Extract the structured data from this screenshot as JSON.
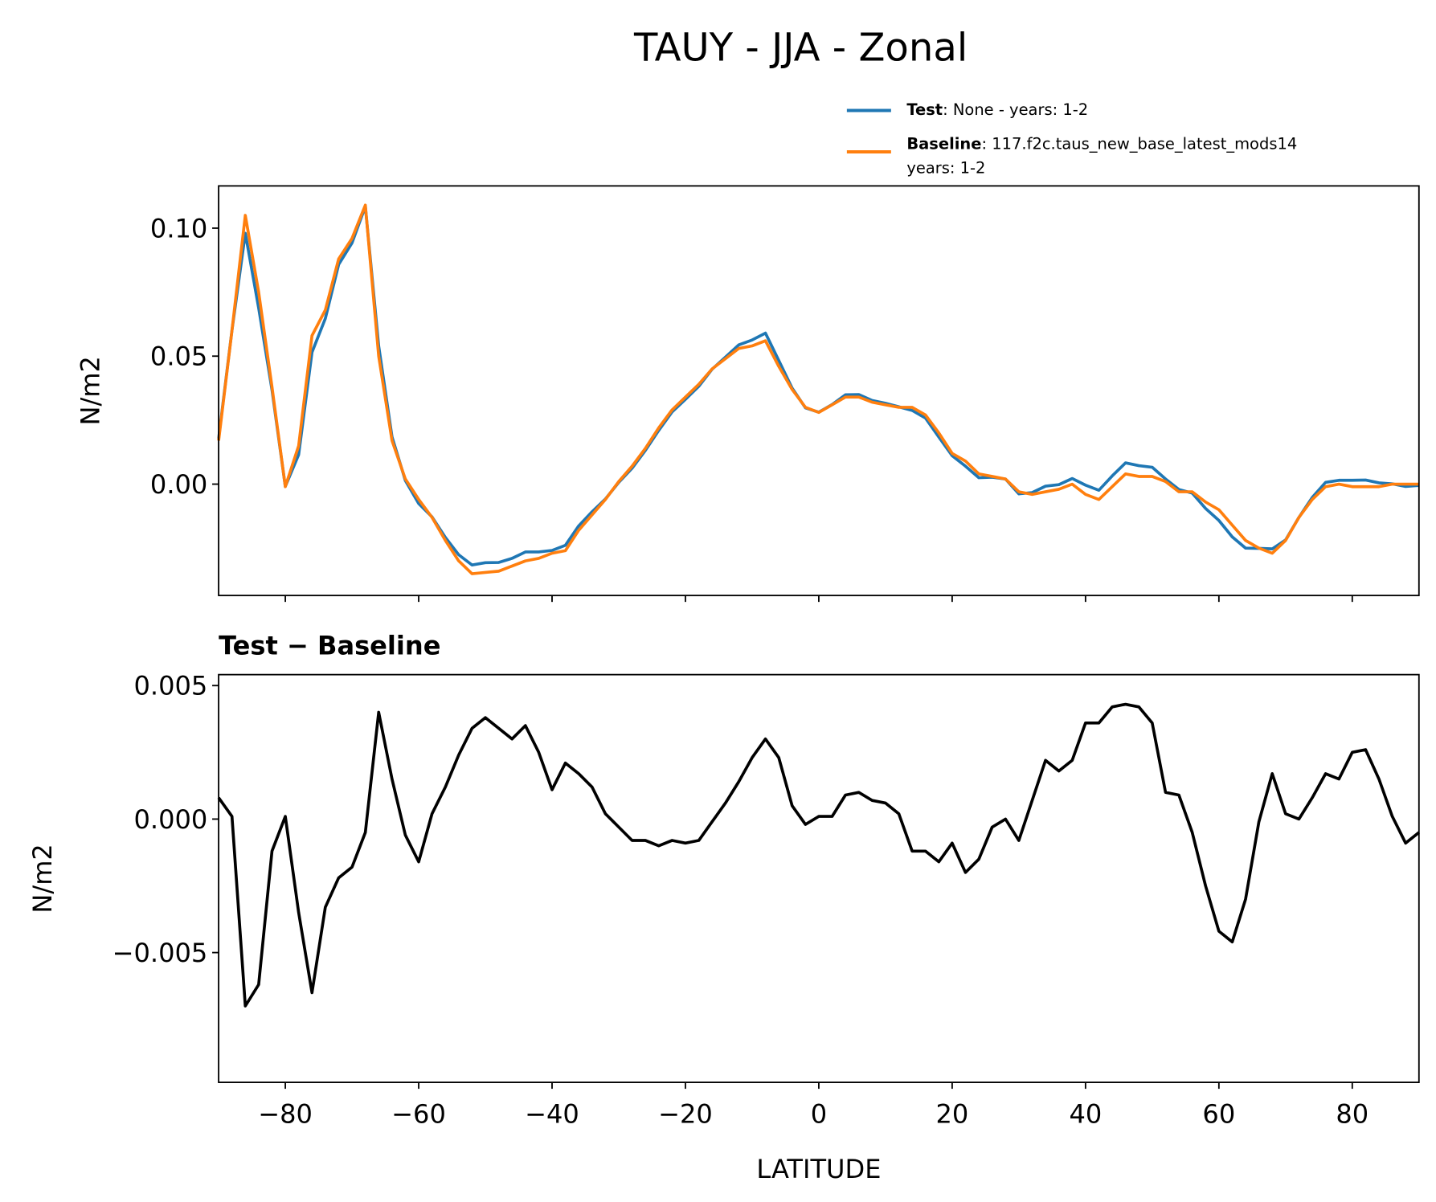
{
  "chart_data": [
    {
      "type": "line",
      "title": "TAUY - JJA - Zonal",
      "y_label": "N/m2",
      "x": [
        -90,
        -88,
        -86,
        -84,
        -82,
        -80,
        -78,
        -76,
        -74,
        -72,
        -70,
        -68,
        -66,
        -64,
        -62,
        -60,
        -58,
        -56,
        -54,
        -52,
        -50,
        -48,
        -46,
        -44,
        -42,
        -40,
        -38,
        -36,
        -34,
        -32,
        -30,
        -28,
        -26,
        -24,
        -22,
        -20,
        -18,
        -16,
        -14,
        -12,
        -10,
        -8,
        -6,
        -4,
        -2,
        0,
        2,
        4,
        6,
        8,
        10,
        12,
        14,
        16,
        18,
        20,
        22,
        24,
        26,
        28,
        30,
        32,
        34,
        36,
        38,
        40,
        42,
        44,
        46,
        48,
        50,
        52,
        54,
        56,
        58,
        60,
        62,
        64,
        66,
        68,
        70,
        72,
        74,
        76,
        78,
        80,
        82,
        84,
        86,
        88,
        90
      ],
      "series": [
        {
          "name": "Test",
          "description": [
            ": None - years: 1-2"
          ],
          "color": "#1f77b4",
          "values": [
            0.0178,
            0.0601,
            0.098,
            0.0688,
            0.0368,
            -0.0009,
            0.0115,
            0.0515,
            0.0647,
            0.0858,
            0.0942,
            0.1085,
            0.054,
            0.0185,
            0.0014,
            -0.0076,
            -0.0128,
            -0.0208,
            -0.0276,
            -0.0316,
            -0.0307,
            -0.0306,
            -0.029,
            -0.0265,
            -0.0265,
            -0.0259,
            -0.0239,
            -0.0163,
            -0.0108,
            -0.0058,
            0.0007,
            0.0062,
            0.0132,
            0.021,
            0.0282,
            0.0331,
            0.0382,
            0.0449,
            0.0496,
            0.0544,
            0.0563,
            0.059,
            0.0483,
            0.0375,
            0.0298,
            0.0281,
            0.0311,
            0.0349,
            0.035,
            0.0327,
            0.0316,
            0.0302,
            0.0288,
            0.0258,
            0.0184,
            0.0111,
            0.007,
            0.0025,
            0.0027,
            0.002,
            -0.0038,
            -0.0033,
            -0.0008,
            -0.0002,
            0.0022,
            -0.0004,
            -0.0024,
            0.0032,
            0.0083,
            0.0072,
            0.0066,
            0.002,
            -0.0021,
            -0.0035,
            -0.0095,
            -0.0142,
            -0.0206,
            -0.025,
            -0.0251,
            -0.0253,
            -0.0218,
            -0.013,
            -0.0052,
            0.0007,
            0.0015,
            0.0015,
            0.0016,
            0.0005,
            0.0001,
            -0.0009,
            -0.0005
          ]
        },
        {
          "name": "Baseline",
          "description": [
            ": 117.f2c.taus_new_base_latest_mods14",
            "years: 1-2"
          ],
          "color": "#ff7f0e",
          "values": [
            0.017,
            0.06,
            0.105,
            0.075,
            0.038,
            -0.001,
            0.015,
            0.058,
            0.068,
            0.088,
            0.096,
            0.109,
            0.05,
            0.017,
            0.002,
            -0.006,
            -0.013,
            -0.022,
            -0.03,
            -0.035,
            -0.0345,
            -0.034,
            -0.032,
            -0.03,
            -0.029,
            -0.027,
            -0.026,
            -0.018,
            -0.012,
            -0.006,
            0.001,
            0.007,
            0.014,
            0.022,
            0.029,
            0.034,
            0.039,
            0.045,
            0.049,
            0.053,
            0.054,
            0.056,
            0.046,
            0.037,
            0.03,
            0.028,
            0.031,
            0.034,
            0.034,
            0.032,
            0.031,
            0.03,
            0.03,
            0.027,
            0.02,
            0.012,
            0.009,
            0.004,
            0.003,
            0.002,
            -0.003,
            -0.004,
            -0.003,
            -0.002,
            0.0,
            -0.004,
            -0.006,
            -0.001,
            0.004,
            0.003,
            0.003,
            0.001,
            -0.003,
            -0.003,
            -0.007,
            -0.01,
            -0.016,
            -0.022,
            -0.025,
            -0.027,
            -0.022,
            -0.013,
            -0.006,
            -0.001,
            0.0,
            -0.001,
            -0.001,
            -0.001,
            0.0,
            0.0,
            0.0
          ]
        }
      ],
      "xlim": [
        -90,
        90
      ],
      "xticks": [
        -80,
        -60,
        -40,
        -20,
        0,
        20,
        40,
        60,
        80
      ],
      "ylim": [
        -0.0435,
        0.1165
      ],
      "yticks": [
        {
          "value": 0,
          "label": "0.00"
        },
        {
          "value": 0.05,
          "label": "0.05"
        },
        {
          "value": 0.1,
          "label": "0.10"
        }
      ]
    },
    {
      "type": "line",
      "title": "Test − Baseline",
      "y_label": "N/m2",
      "x_label": "LATITUDE",
      "x": [
        -90,
        -88,
        -86,
        -84,
        -82,
        -80,
        -78,
        -76,
        -74,
        -72,
        -70,
        -68,
        -66,
        -64,
        -62,
        -60,
        -58,
        -56,
        -54,
        -52,
        -50,
        -48,
        -46,
        -44,
        -42,
        -40,
        -38,
        -36,
        -34,
        -32,
        -30,
        -28,
        -26,
        -24,
        -22,
        -20,
        -18,
        -16,
        -14,
        -12,
        -10,
        -8,
        -6,
        -4,
        -2,
        0,
        2,
        4,
        6,
        8,
        10,
        12,
        14,
        16,
        18,
        20,
        22,
        24,
        26,
        28,
        30,
        32,
        34,
        36,
        38,
        40,
        42,
        44,
        46,
        48,
        50,
        52,
        54,
        56,
        58,
        60,
        62,
        64,
        66,
        68,
        70,
        72,
        74,
        76,
        78,
        80,
        82,
        84,
        86,
        88,
        90
      ],
      "series": [
        {
          "color": "#000000",
          "values": [
            0.0008,
            0.0001,
            -0.007,
            -0.0062,
            -0.0012,
            0.0001,
            -0.0035,
            -0.0065,
            -0.0033,
            -0.0022,
            -0.0018,
            -0.0005,
            0.004,
            0.0015,
            -0.0006,
            -0.0016,
            0.0002,
            0.0012,
            0.0024,
            0.0034,
            0.0038,
            0.0034,
            0.003,
            0.0035,
            0.0025,
            0.0011,
            0.0021,
            0.0017,
            0.0012,
            0.0002,
            -0.0003,
            -0.0008,
            -0.0008,
            -0.001,
            -0.0008,
            -0.0009,
            -0.0008,
            -0.0001,
            0.0006,
            0.0014,
            0.0023,
            0.003,
            0.0023,
            0.0005,
            -0.0002,
            0.0001,
            0.0001,
            0.0009,
            0.001,
            0.0007,
            0.0006,
            0.0002,
            -0.0012,
            -0.0012,
            -0.0016,
            -0.0009,
            -0.002,
            -0.0015,
            -0.0003,
            0.0,
            -0.0008,
            0.0007,
            0.0022,
            0.0018,
            0.0022,
            0.0036,
            0.0036,
            0.0042,
            0.0043,
            0.0042,
            0.0036,
            0.001,
            0.0009,
            -0.0005,
            -0.0025,
            -0.0042,
            -0.0046,
            -0.003,
            -0.0001,
            0.0017,
            0.0002,
            0.0,
            0.0008,
            0.0017,
            0.0015,
            0.0025,
            0.0026,
            0.0015,
            0.0001,
            -0.0009,
            -0.0005
          ]
        }
      ],
      "xlim": [
        -90,
        90
      ],
      "xticks": [
        {
          "value": -80,
          "label": "−80"
        },
        {
          "value": -60,
          "label": "−60"
        },
        {
          "value": -40,
          "label": "−40"
        },
        {
          "value": -20,
          "label": "−20"
        },
        0,
        20,
        40,
        60,
        80
      ],
      "ylim": [
        -0.00986,
        0.00541
      ],
      "yticks": [
        {
          "value": -0.005,
          "label": "−0.005"
        },
        {
          "value": 0,
          "label": "0.000"
        },
        {
          "value": 0.005,
          "label": "0.005"
        }
      ]
    }
  ]
}
